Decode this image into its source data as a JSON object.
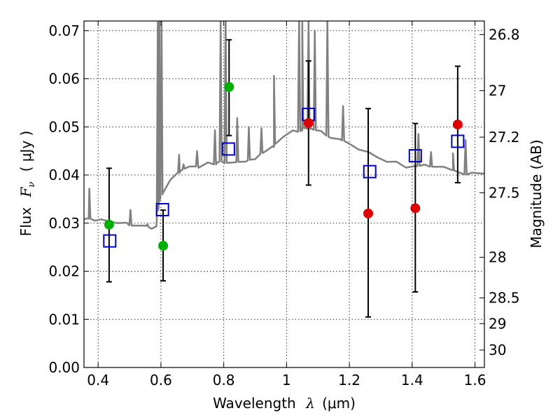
{
  "chart_data": {
    "type": "scatter",
    "title": "",
    "xlabel_prefix": "Wavelength",
    "xlabel_symbol": "λ",
    "xlabel_unit": "(μm)",
    "ylabel_prefix": "Flux",
    "ylabel_symbol": "F",
    "ylabel_subscript": "ν",
    "ylabel_unit": "( μJy )",
    "y2label": "Magnitude (AB)",
    "xlim": [
      0.355,
      1.63
    ],
    "ylim": [
      0.0,
      0.072
    ],
    "grid": true,
    "x_ticks": [
      0.4,
      0.6,
      0.8,
      1.0,
      1.2,
      1.4,
      1.6
    ],
    "x_tick_labels": [
      "0.4",
      "0.6",
      "0.8",
      "1",
      "1.2",
      "1.4",
      "1.6"
    ],
    "y_ticks": [
      0.0,
      0.01,
      0.02,
      0.03,
      0.04,
      0.05,
      0.06,
      0.07
    ],
    "y_tick_labels": [
      "0.00",
      "0.01",
      "0.02",
      "0.03",
      "0.04",
      "0.05",
      "0.06",
      "0.07"
    ],
    "mag_ticks": [
      26.8,
      27,
      27.2,
      27.5,
      28,
      28.5,
      29,
      30
    ],
    "mag_tick_labels": [
      "26.8",
      "27",
      "27.2",
      "27.5",
      "28",
      "28.5",
      "29",
      "30"
    ],
    "colors": {
      "spectrum": "#808080",
      "model": "#0000cc",
      "green": "#00b000",
      "red": "#e00000",
      "errorbar": "#000000"
    },
    "spectrum": {
      "name": "Template spectrum",
      "baseline": [
        [
          0.355,
          0.031
        ],
        [
          0.37,
          0.0312
        ],
        [
          0.39,
          0.0308
        ],
        [
          0.41,
          0.031
        ],
        [
          0.43,
          0.0305
        ],
        [
          0.46,
          0.0302
        ],
        [
          0.49,
          0.0298
        ],
        [
          0.52,
          0.0297
        ],
        [
          0.55,
          0.0295
        ],
        [
          0.57,
          0.029
        ],
        [
          0.585,
          0.0292
        ],
        [
          0.596,
          0.035
        ],
        [
          0.605,
          0.036
        ],
        [
          0.63,
          0.0392
        ],
        [
          0.66,
          0.0405
        ],
        [
          0.69,
          0.0415
        ],
        [
          0.72,
          0.0418
        ],
        [
          0.75,
          0.0425
        ],
        [
          0.78,
          0.0425
        ],
        [
          0.81,
          0.0428
        ],
        [
          0.84,
          0.0425
        ],
        [
          0.87,
          0.0428
        ],
        [
          0.9,
          0.0435
        ],
        [
          0.93,
          0.0445
        ],
        [
          0.96,
          0.046
        ],
        [
          0.99,
          0.048
        ],
        [
          1.02,
          0.049
        ],
        [
          1.05,
          0.0495
        ],
        [
          1.08,
          0.0495
        ],
        [
          1.11,
          0.049
        ],
        [
          1.14,
          0.048
        ],
        [
          1.17,
          0.0472
        ],
        [
          1.2,
          0.0465
        ],
        [
          1.23,
          0.0455
        ],
        [
          1.26,
          0.0445
        ],
        [
          1.29,
          0.0438
        ],
        [
          1.32,
          0.0428
        ],
        [
          1.35,
          0.0425
        ],
        [
          1.38,
          0.0418
        ],
        [
          1.41,
          0.0418
        ],
        [
          1.44,
          0.042
        ],
        [
          1.47,
          0.042
        ],
        [
          1.5,
          0.0415
        ],
        [
          1.53,
          0.041
        ],
        [
          1.56,
          0.0405
        ],
        [
          1.59,
          0.0402
        ],
        [
          1.63,
          0.0402
        ]
      ],
      "peaks": [
        [
          0.372,
          0.037
        ],
        [
          0.503,
          0.0325
        ],
        [
          0.557,
          0.0298
        ],
        [
          0.59,
          0.072
        ],
        [
          0.595,
          0.072
        ],
        [
          0.602,
          0.072
        ],
        [
          0.658,
          0.0445
        ],
        [
          0.672,
          0.0425
        ],
        [
          0.715,
          0.045
        ],
        [
          0.772,
          0.049
        ],
        [
          0.79,
          0.072
        ],
        [
          0.806,
          0.072
        ],
        [
          0.843,
          0.052
        ],
        [
          0.88,
          0.05
        ],
        [
          0.92,
          0.05
        ],
        [
          0.96,
          0.0608
        ],
        [
          1.04,
          0.072
        ],
        [
          1.05,
          0.072
        ],
        [
          1.07,
          0.072
        ],
        [
          1.09,
          0.07
        ],
        [
          1.13,
          0.072
        ],
        [
          1.18,
          0.0545
        ],
        [
          1.42,
          0.0485
        ],
        [
          1.46,
          0.0445
        ],
        [
          1.53,
          0.0445
        ],
        [
          1.57,
          0.047
        ]
      ]
    },
    "model_points": {
      "name": "Model photometry",
      "marker": "open-square",
      "x": [
        0.437,
        0.605,
        0.815,
        1.07,
        1.265,
        1.41,
        1.545
      ],
      "y": [
        0.0263,
        0.0328,
        0.0454,
        0.0526,
        0.0407,
        0.044,
        0.047
      ]
    },
    "observed": [
      {
        "name": "green",
        "x": 0.435,
        "y": 0.0297,
        "yerr_low": 0.0178,
        "yerr_high": 0.0414
      },
      {
        "name": "green",
        "x": 0.607,
        "y": 0.0253,
        "yerr_low": 0.018,
        "yerr_high": 0.0327
      },
      {
        "name": "green",
        "x": 0.817,
        "y": 0.0583,
        "yerr_low": 0.0482,
        "yerr_high": 0.0681
      },
      {
        "name": "red",
        "x": 1.07,
        "y": 0.0508,
        "yerr_low": 0.0379,
        "yerr_high": 0.0637
      },
      {
        "name": "red",
        "x": 1.26,
        "y": 0.032,
        "yerr_low": 0.0105,
        "yerr_high": 0.0538
      },
      {
        "name": "red",
        "x": 1.41,
        "y": 0.0331,
        "yerr_low": 0.0157,
        "yerr_high": 0.0507
      },
      {
        "name": "red",
        "x": 1.545,
        "y": 0.0505,
        "yerr_low": 0.0384,
        "yerr_high": 0.0626
      }
    ]
  }
}
